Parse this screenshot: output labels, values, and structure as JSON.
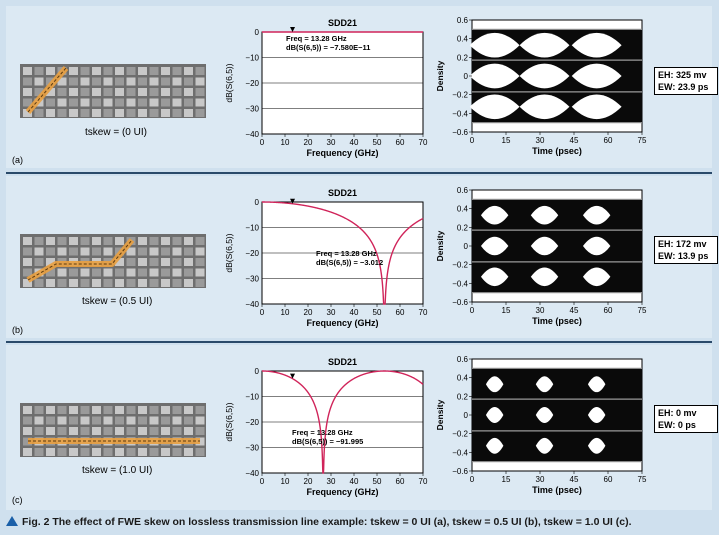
{
  "caption": "Fig. 2  The effect of FWE skew on lossless transmission line example: tskew = 0 UI (a), tskew = 0.5 UI (b), tskew = 1.0 UI (c).",
  "colors": {
    "trace": "#d0245a",
    "weave_path": "#e9a040",
    "panel_bg": "#dce9f3"
  },
  "panels": [
    {
      "label": "(a)",
      "tskew_label": "tskew = (0 UI)",
      "eh": "EH: 325 mv",
      "ew": "EW: 23.9 ps"
    },
    {
      "label": "(b)",
      "tskew_label": "tskew = (0.5 UI)",
      "eh": "EH: 172 mv",
      "ew": "EW: 13.9 ps"
    },
    {
      "label": "(c)",
      "tskew_label": "tskew = (1.0 UI)",
      "eh": "EH: 0 mv",
      "ew": "EW: 0 ps"
    }
  ],
  "chart_data": [
    {
      "type": "line",
      "title": "SDD21",
      "xlabel": "Frequency (GHz)",
      "ylabel": "dB(S(6,5))",
      "xlim": [
        0,
        70
      ],
      "ylim": [
        -40,
        0
      ],
      "xticks": [
        "0",
        "10",
        "20",
        "30",
        "40",
        "50",
        "60",
        "70"
      ],
      "yticks": [
        "0",
        "-10",
        "-20",
        "-30",
        "-40"
      ],
      "skew_ui": 0,
      "marker_freq": 13.28,
      "annotation": [
        "Freq = 13.28 GHz",
        "dB(S(6,5)) = -7.580E-11"
      ]
    },
    {
      "type": "line",
      "title": "SDD21",
      "xlabel": "Frequency (GHz)",
      "ylabel": "dB(S(6,5))",
      "xlim": [
        0,
        70
      ],
      "ylim": [
        -40,
        0
      ],
      "xticks": [
        "0",
        "10",
        "20",
        "30",
        "40",
        "50",
        "60",
        "70"
      ],
      "yticks": [
        "0",
        "-10",
        "-20",
        "-30",
        "-40"
      ],
      "skew_ui": 0.5,
      "marker_freq": 13.28,
      "annotation": [
        "Freq = 13.28 GHz",
        "dB(S(6,5)) = -3.012"
      ]
    },
    {
      "type": "line",
      "title": "SDD21",
      "xlabel": "Frequency (GHz)",
      "ylabel": "dB(S(6,5))",
      "xlim": [
        0,
        70
      ],
      "ylim": [
        -40,
        0
      ],
      "xticks": [
        "0",
        "10",
        "20",
        "30",
        "40",
        "50",
        "60",
        "70"
      ],
      "yticks": [
        "0",
        "-10",
        "-20",
        "-30",
        "-40"
      ],
      "skew_ui": 1.0,
      "marker_freq": 13.28,
      "annotation": [
        "Freq = 13.28 GHz",
        "dB(S(6,5)) = -91.995"
      ]
    },
    {
      "type": "heatmap",
      "xlabel": "Time (psec)",
      "ylabel": "Density",
      "xlim": [
        0,
        75
      ],
      "ylim": [
        -0.6,
        0.6
      ],
      "xticks": [
        "0",
        "15",
        "30",
        "45",
        "60",
        "75"
      ],
      "yticks": [
        "0.6",
        "0.4",
        "0.2",
        "0",
        "-0.2",
        "-0.4",
        "-0.6"
      ],
      "eye_openness": 1.0
    },
    {
      "type": "heatmap",
      "xlabel": "Time (psec)",
      "ylabel": "Density",
      "xlim": [
        0,
        75
      ],
      "ylim": [
        -0.6,
        0.6
      ],
      "xticks": [
        "0",
        "15",
        "30",
        "45",
        "60",
        "75"
      ],
      "yticks": [
        "0.6",
        "0.4",
        "0.2",
        "0",
        "-0.2",
        "-0.4",
        "-0.6"
      ],
      "eye_openness": 0.55
    },
    {
      "type": "heatmap",
      "xlabel": "Time (psec)",
      "ylabel": "Density",
      "xlim": [
        0,
        75
      ],
      "ylim": [
        -0.6,
        0.6
      ],
      "xticks": [
        "0",
        "15",
        "30",
        "45",
        "60",
        "75"
      ],
      "yticks": [
        "0.6",
        "0.4",
        "0.2",
        "0",
        "-0.2",
        "-0.4",
        "-0.6"
      ],
      "eye_openness": 0.35
    }
  ]
}
